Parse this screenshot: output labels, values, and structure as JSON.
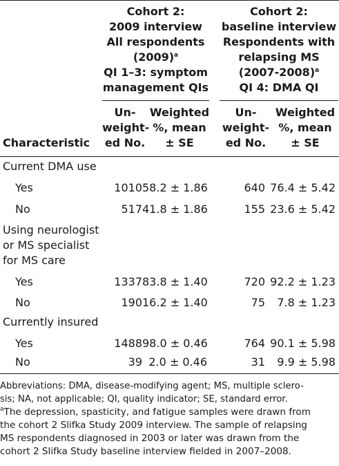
{
  "header": {
    "group1": {
      "lines": [
        "Cohort 2:",
        "2009 interview",
        "All respondents"
      ],
      "year": "(2009)",
      "year_sup": "a",
      "qi_lines": [
        "QI 1–3: symptom",
        "management QIs"
      ]
    },
    "group2": {
      "lines": [
        "Cohort 2:",
        "baseline interview",
        "Respondents with",
        "relapsing MS"
      ],
      "year": "(2007-2008)",
      "year_sup": "a",
      "qi_line": "QI 4: DMA QI"
    },
    "col_characteristic": "Characteristic",
    "col_unweighted": [
      "Un-",
      "weight-",
      "ed No."
    ],
    "col_weighted": [
      "Weighted",
      "%, mean",
      "± SE"
    ]
  },
  "sections": [
    {
      "label_lines": [
        "Current DMA use"
      ],
      "rows": [
        {
          "label": "Yes",
          "n1": "1010",
          "w1": "58.2 ± 1.86",
          "n2": "640",
          "w2": "76.4 ± 5.42"
        },
        {
          "label": "No",
          "n1": "517",
          "w1": "41.8 ± 1.86",
          "n2": "155",
          "w2": "23.6 ± 5.42"
        }
      ]
    },
    {
      "label_lines": [
        "Using neurologist",
        "or MS specialist",
        "for MS care"
      ],
      "rows": [
        {
          "label": "Yes",
          "n1": "1337",
          "w1": "83.8 ± 1.40",
          "n2": "720",
          "w2": "92.2 ± 1.23"
        },
        {
          "label": "No",
          "n1": "190",
          "w1": "16.2 ± 1.40",
          "n2": "75",
          "w2": "7.8 ± 1.23"
        }
      ]
    },
    {
      "label_lines": [
        "Currently insured"
      ],
      "rows": [
        {
          "label": "Yes",
          "n1": "1488",
          "w1": "98.0 ± 0.46",
          "n2": "764",
          "w2": "90.1 ± 5.98"
        },
        {
          "label": "No",
          "n1": "39",
          "w1": "2.0 ± 0.46",
          "n2": "31",
          "w2": "9.9 ± 5.98"
        }
      ]
    }
  ],
  "footnotes": {
    "abbrev_lines": [
      "Abbreviations: DMA, disease-modifying agent; MS, multiple sclero-",
      "sis; NA, not applicable; QI, quality indicator; SE, standard error."
    ],
    "note_marker": "a",
    "note_lines": [
      "The depression, spasticity, and fatigue samples were drawn from",
      "the cohort 2 Slifka Study 2009 interview. The sample of relapsing",
      "MS respondents diagnosed in 2003 or later was drawn from the",
      "cohort 2 Slifka Study baseline interview fielded in 2007–2008."
    ]
  }
}
